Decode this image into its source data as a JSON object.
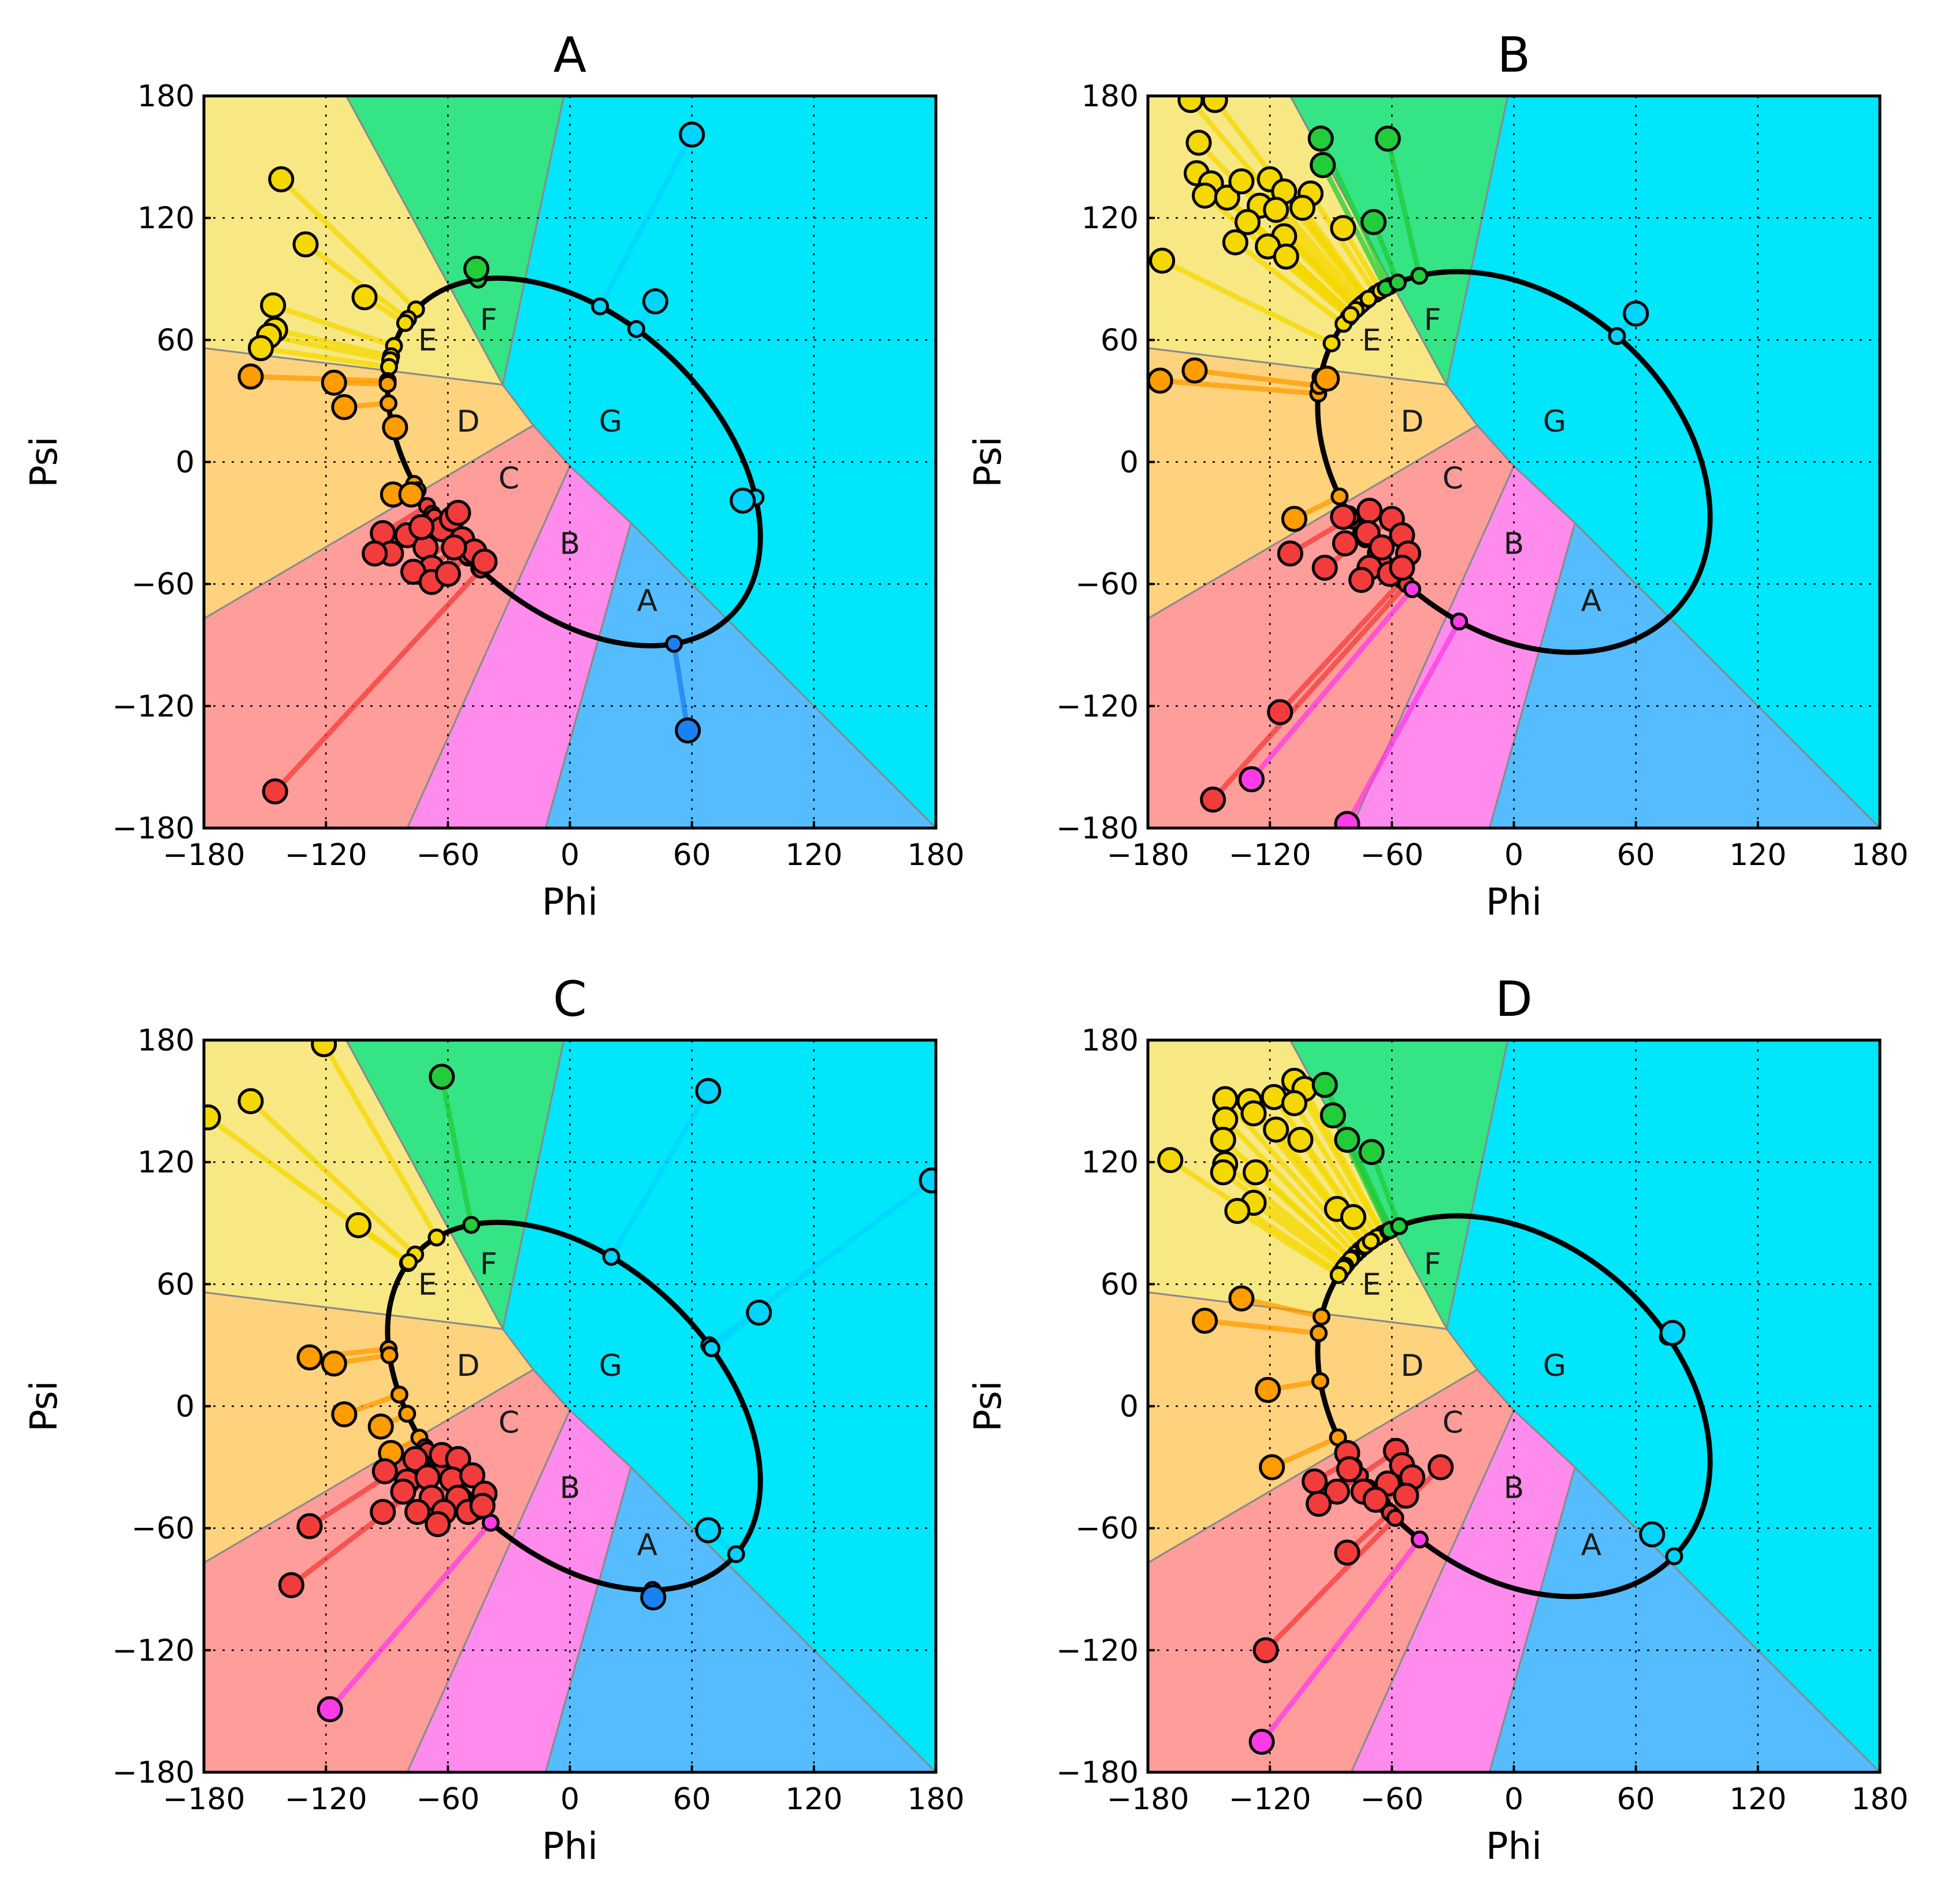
{
  "chart_data": [
    {
      "type": "scatter",
      "title": "A",
      "xlabel": "Phi",
      "ylabel": "Psi",
      "xlim": [
        -180,
        180
      ],
      "ylim": [
        -180,
        180
      ],
      "xticks": [
        "−180",
        "−120",
        "−60",
        "0",
        "60",
        "120",
        "180"
      ],
      "yticks": [
        "180",
        "120",
        "60",
        "0",
        "−60",
        "−120",
        "−180"
      ],
      "grid": true,
      "region_labels": [
        "A",
        "B",
        "C",
        "D",
        "E",
        "F",
        "G"
      ],
      "ellipse": {
        "center": [
          2,
          0
        ],
        "semi_axes": [
          108,
          70
        ],
        "angle_deg": -44
      },
      "points": [
        {
          "phi": -142,
          "psi": 139,
          "c": "#f5d800"
        },
        {
          "phi": -130,
          "psi": 107,
          "c": "#f5d800"
        },
        {
          "phi": -146,
          "psi": 77,
          "c": "#f5d800"
        },
        {
          "phi": -145,
          "psi": 65,
          "c": "#f5d800"
        },
        {
          "phi": -148,
          "psi": 62,
          "c": "#f5d800"
        },
        {
          "phi": -152,
          "psi": 56,
          "c": "#f5d800"
        },
        {
          "phi": -101,
          "psi": 81,
          "c": "#f5d800"
        },
        {
          "phi": -157,
          "psi": 42,
          "c": "#ff9c00"
        },
        {
          "phi": -116,
          "psi": 39,
          "c": "#ff9c00"
        },
        {
          "phi": -111,
          "psi": 27,
          "c": "#ff9c00"
        },
        {
          "phi": -86,
          "psi": 17,
          "c": "#ff9c00"
        },
        {
          "phi": -87,
          "psi": -16,
          "c": "#ff9c00"
        },
        {
          "phi": -78,
          "psi": -16,
          "c": "#ff9c00"
        },
        {
          "phi": -92,
          "psi": -35,
          "c": "#f23c3c"
        },
        {
          "phi": -88,
          "psi": -45,
          "c": "#f23c3c"
        },
        {
          "phi": -80,
          "psi": -36,
          "c": "#f23c3c"
        },
        {
          "phi": -71,
          "psi": -42,
          "c": "#f23c3c"
        },
        {
          "phi": -63,
          "psi": -33,
          "c": "#f23c3c"
        },
        {
          "phi": -58,
          "psi": -28,
          "c": "#f23c3c"
        },
        {
          "phi": -55,
          "psi": -25,
          "c": "#f23c3c"
        },
        {
          "phi": -53,
          "psi": -38,
          "c": "#f23c3c"
        },
        {
          "phi": -47,
          "psi": -44,
          "c": "#f23c3c"
        },
        {
          "phi": -42,
          "psi": -49,
          "c": "#f23c3c"
        },
        {
          "phi": -57,
          "psi": -42,
          "c": "#f23c3c"
        },
        {
          "phi": -68,
          "psi": -52,
          "c": "#f23c3c"
        },
        {
          "phi": -77,
          "psi": -54,
          "c": "#f23c3c"
        },
        {
          "phi": -96,
          "psi": -45,
          "c": "#f23c3c"
        },
        {
          "phi": -68,
          "psi": -59,
          "c": "#f23c3c"
        },
        {
          "phi": -60,
          "psi": -55,
          "c": "#f23c3c"
        },
        {
          "phi": -73,
          "psi": -32,
          "c": "#f23c3c"
        },
        {
          "phi": -145,
          "psi": -162,
          "c": "#f23c3c"
        },
        {
          "phi": -46,
          "psi": 95,
          "c": "#22cc3a"
        },
        {
          "phi": 60,
          "psi": 161,
          "c": "#00d4ff"
        },
        {
          "phi": 42,
          "psi": 79,
          "c": "#00d4ff"
        },
        {
          "phi": 85,
          "psi": -19,
          "c": "#00d4ff"
        },
        {
          "phi": 58,
          "psi": -132,
          "c": "#1a82f0"
        }
      ]
    },
    {
      "type": "scatter",
      "title": "B",
      "xlabel": "Phi",
      "ylabel": "Psi",
      "xlim": [
        -180,
        180
      ],
      "ylim": [
        -180,
        180
      ],
      "xticks": [
        "−180",
        "−120",
        "−60",
        "0",
        "60",
        "120",
        "180"
      ],
      "yticks": [
        "180",
        "120",
        "60",
        "0",
        "−60",
        "−120",
        "−180"
      ],
      "grid": true,
      "region_labels": [
        "A",
        "B",
        "C",
        "D",
        "E",
        "F",
        "G"
      ],
      "ellipse": {
        "center": [
          0,
          0
        ],
        "semi_axes": [
          108,
          80
        ],
        "angle_deg": -42
      },
      "points": [
        {
          "phi": -159,
          "psi": 178,
          "c": "#f5d800"
        },
        {
          "phi": -147,
          "psi": 178,
          "c": "#f5d800"
        },
        {
          "phi": -155,
          "psi": 157,
          "c": "#f5d800"
        },
        {
          "phi": -156,
          "psi": 142,
          "c": "#f5d800"
        },
        {
          "phi": -149,
          "psi": 137,
          "c": "#f5d800"
        },
        {
          "phi": -152,
          "psi": 131,
          "c": "#f5d800"
        },
        {
          "phi": -141,
          "psi": 130,
          "c": "#f5d800"
        },
        {
          "phi": -134,
          "psi": 138,
          "c": "#f5d800"
        },
        {
          "phi": -120,
          "psi": 139,
          "c": "#f5d800"
        },
        {
          "phi": -113,
          "psi": 133,
          "c": "#f5d800"
        },
        {
          "phi": -100,
          "psi": 132,
          "c": "#f5d800"
        },
        {
          "phi": -125,
          "psi": 126,
          "c": "#f5d800"
        },
        {
          "phi": -131,
          "psi": 118,
          "c": "#f5d800"
        },
        {
          "phi": -117,
          "psi": 124,
          "c": "#f5d800"
        },
        {
          "phi": -104,
          "psi": 125,
          "c": "#f5d800"
        },
        {
          "phi": -113,
          "psi": 111,
          "c": "#f5d800"
        },
        {
          "phi": -121,
          "psi": 106,
          "c": "#f5d800"
        },
        {
          "phi": -137,
          "psi": 108,
          "c": "#f5d800"
        },
        {
          "phi": -112,
          "psi": 101,
          "c": "#f5d800"
        },
        {
          "phi": -173,
          "psi": 99,
          "c": "#f5d800"
        },
        {
          "phi": -84,
          "psi": 115,
          "c": "#f5d800"
        },
        {
          "phi": -174,
          "psi": 40,
          "c": "#ff9c00"
        },
        {
          "phi": -157,
          "psi": 45,
          "c": "#ff9c00"
        },
        {
          "phi": -92,
          "psi": 41,
          "c": "#ff9c00"
        },
        {
          "phi": -108,
          "psi": -28,
          "c": "#ff9c00"
        },
        {
          "phi": -71,
          "psi": -24,
          "c": "#f23c3c"
        },
        {
          "phi": -84,
          "psi": -27,
          "c": "#f23c3c"
        },
        {
          "phi": -60,
          "psi": -28,
          "c": "#f23c3c"
        },
        {
          "phi": -55,
          "psi": -36,
          "c": "#f23c3c"
        },
        {
          "phi": -83,
          "psi": -40,
          "c": "#f23c3c"
        },
        {
          "phi": -72,
          "psi": -35,
          "c": "#f23c3c"
        },
        {
          "phi": -65,
          "psi": -42,
          "c": "#f23c3c"
        },
        {
          "phi": -52,
          "psi": -45,
          "c": "#f23c3c"
        },
        {
          "phi": -71,
          "psi": -52,
          "c": "#f23c3c"
        },
        {
          "phi": -61,
          "psi": -55,
          "c": "#f23c3c"
        },
        {
          "phi": -75,
          "psi": -58,
          "c": "#f23c3c"
        },
        {
          "phi": -93,
          "psi": -52,
          "c": "#f23c3c"
        },
        {
          "phi": -55,
          "psi": -52,
          "c": "#f23c3c"
        },
        {
          "phi": -110,
          "psi": -45,
          "c": "#f23c3c"
        },
        {
          "phi": -115,
          "psi": -123,
          "c": "#f23c3c"
        },
        {
          "phi": -148,
          "psi": -166,
          "c": "#f23c3c"
        },
        {
          "phi": -129,
          "psi": -156,
          "c": "#ff3be6"
        },
        {
          "phi": -82,
          "psi": -178,
          "c": "#ff3be6"
        },
        {
          "phi": -95,
          "psi": 159,
          "c": "#22cc3a"
        },
        {
          "phi": -94,
          "psi": 146,
          "c": "#22cc3a"
        },
        {
          "phi": -62,
          "psi": 159,
          "c": "#22cc3a"
        },
        {
          "phi": -69,
          "psi": 118,
          "c": "#22cc3a"
        },
        {
          "phi": 60,
          "psi": 73,
          "c": "#00d4ff"
        }
      ]
    },
    {
      "type": "scatter",
      "title": "C",
      "xlabel": "Phi",
      "ylabel": "Psi",
      "xlim": [
        -180,
        180
      ],
      "ylim": [
        -180,
        180
      ],
      "xticks": [
        "−180",
        "−120",
        "−60",
        "0",
        "60",
        "120",
        "180"
      ],
      "yticks": [
        "180",
        "120",
        "60",
        "0",
        "−60",
        "−120",
        "−180"
      ],
      "grid": true,
      "region_labels": [
        "A",
        "B",
        "C",
        "D",
        "E",
        "F",
        "G"
      ],
      "ellipse": {
        "center": [
          2,
          0
        ],
        "semi_axes": [
          108,
          70
        ],
        "angle_deg": -44
      },
      "points": [
        {
          "phi": -121,
          "psi": 178,
          "c": "#f5d800"
        },
        {
          "phi": -157,
          "psi": 150,
          "c": "#f5d800"
        },
        {
          "phi": -178,
          "psi": 142,
          "c": "#f5d800"
        },
        {
          "phi": -104,
          "psi": 89,
          "c": "#f5d800"
        },
        {
          "phi": -128,
          "psi": 24,
          "c": "#ff9c00"
        },
        {
          "phi": -116,
          "psi": 21,
          "c": "#ff9c00"
        },
        {
          "phi": -111,
          "psi": -4,
          "c": "#ff9c00"
        },
        {
          "phi": -93,
          "psi": -10,
          "c": "#ff9c00"
        },
        {
          "phi": -88,
          "psi": -23,
          "c": "#ff9c00"
        },
        {
          "phi": -91,
          "psi": -32,
          "c": "#f23c3c"
        },
        {
          "phi": -76,
          "psi": -26,
          "c": "#f23c3c"
        },
        {
          "phi": -63,
          "psi": -24,
          "c": "#f23c3c"
        },
        {
          "phi": -55,
          "psi": -26,
          "c": "#f23c3c"
        },
        {
          "phi": -80,
          "psi": -37,
          "c": "#f23c3c"
        },
        {
          "phi": -70,
          "psi": -35,
          "c": "#f23c3c"
        },
        {
          "phi": -58,
          "psi": -36,
          "c": "#f23c3c"
        },
        {
          "phi": -48,
          "psi": -34,
          "c": "#f23c3c"
        },
        {
          "phi": -42,
          "psi": -43,
          "c": "#f23c3c"
        },
        {
          "phi": -55,
          "psi": -45,
          "c": "#f23c3c"
        },
        {
          "phi": -68,
          "psi": -45,
          "c": "#f23c3c"
        },
        {
          "phi": -82,
          "psi": -42,
          "c": "#f23c3c"
        },
        {
          "phi": -75,
          "psi": -52,
          "c": "#f23c3c"
        },
        {
          "phi": -62,
          "psi": -52,
          "c": "#f23c3c"
        },
        {
          "phi": -50,
          "psi": -52,
          "c": "#f23c3c"
        },
        {
          "phi": -65,
          "psi": -58,
          "c": "#f23c3c"
        },
        {
          "phi": -43,
          "psi": -49,
          "c": "#f23c3c"
        },
        {
          "phi": -92,
          "psi": -52,
          "c": "#f23c3c"
        },
        {
          "phi": -128,
          "psi": -59,
          "c": "#f23c3c"
        },
        {
          "phi": -137,
          "psi": -88,
          "c": "#f23c3c"
        },
        {
          "phi": -118,
          "psi": -149,
          "c": "#ff3be6"
        },
        {
          "phi": -63,
          "psi": 162,
          "c": "#22cc3a"
        },
        {
          "phi": 68,
          "psi": 155,
          "c": "#00d4ff"
        },
        {
          "phi": 178,
          "psi": 111,
          "c": "#00d4ff"
        },
        {
          "phi": 93,
          "psi": 46,
          "c": "#00d4ff"
        },
        {
          "phi": 68,
          "psi": -61,
          "c": "#00d4ff"
        },
        {
          "phi": 41,
          "psi": -94,
          "c": "#1a82f0"
        }
      ]
    },
    {
      "type": "scatter",
      "title": "D",
      "xlabel": "Phi",
      "ylabel": "Psi",
      "xlim": [
        -180,
        180
      ],
      "ylim": [
        -180,
        180
      ],
      "xticks": [
        "−180",
        "−120",
        "−60",
        "0",
        "60",
        "120",
        "180"
      ],
      "yticks": [
        "180",
        "120",
        "60",
        "0",
        "−60",
        "−120",
        "−180"
      ],
      "grid": true,
      "region_labels": [
        "A",
        "B",
        "C",
        "D",
        "E",
        "F",
        "G"
      ],
      "ellipse": {
        "center": [
          0,
          0
        ],
        "semi_axes": [
          108,
          80
        ],
        "angle_deg": -42
      },
      "points": [
        {
          "phi": -108,
          "psi": 160,
          "c": "#f5d800"
        },
        {
          "phi": -103,
          "psi": 156,
          "c": "#f5d800"
        },
        {
          "phi": -142,
          "psi": 151,
          "c": "#f5d800"
        },
        {
          "phi": -130,
          "psi": 150,
          "c": "#f5d800"
        },
        {
          "phi": -118,
          "psi": 152,
          "c": "#f5d800"
        },
        {
          "phi": -108,
          "psi": 149,
          "c": "#f5d800"
        },
        {
          "phi": -142,
          "psi": 141,
          "c": "#f5d800"
        },
        {
          "phi": -128,
          "psi": 144,
          "c": "#f5d800"
        },
        {
          "phi": -143,
          "psi": 131,
          "c": "#f5d800"
        },
        {
          "phi": -117,
          "psi": 136,
          "c": "#f5d800"
        },
        {
          "phi": -105,
          "psi": 131,
          "c": "#f5d800"
        },
        {
          "phi": -142,
          "psi": 119,
          "c": "#f5d800"
        },
        {
          "phi": -127,
          "psi": 115,
          "c": "#f5d800"
        },
        {
          "phi": -143,
          "psi": 115,
          "c": "#f5d800"
        },
        {
          "phi": -169,
          "psi": 121,
          "c": "#f5d800"
        },
        {
          "phi": -128,
          "psi": 100,
          "c": "#f5d800"
        },
        {
          "phi": -136,
          "psi": 96,
          "c": "#f5d800"
        },
        {
          "phi": -87,
          "psi": 97,
          "c": "#f5d800"
        },
        {
          "phi": -79,
          "psi": 93,
          "c": "#f5d800"
        },
        {
          "phi": -134,
          "psi": 53,
          "c": "#ff9c00"
        },
        {
          "phi": -152,
          "psi": 42,
          "c": "#ff9c00"
        },
        {
          "phi": -121,
          "psi": 8,
          "c": "#ff9c00"
        },
        {
          "phi": -119,
          "psi": -30,
          "c": "#ff9c00"
        },
        {
          "phi": -82,
          "psi": -23,
          "c": "#f23c3c"
        },
        {
          "phi": -58,
          "psi": -22,
          "c": "#f23c3c"
        },
        {
          "phi": -98,
          "psi": -37,
          "c": "#f23c3c"
        },
        {
          "phi": -81,
          "psi": -31,
          "c": "#f23c3c"
        },
        {
          "phi": -55,
          "psi": -29,
          "c": "#f23c3c"
        },
        {
          "phi": -62,
          "psi": -38,
          "c": "#f23c3c"
        },
        {
          "phi": -74,
          "psi": -42,
          "c": "#f23c3c"
        },
        {
          "phi": -87,
          "psi": -42,
          "c": "#f23c3c"
        },
        {
          "phi": -50,
          "psi": -35,
          "c": "#f23c3c"
        },
        {
          "phi": -36,
          "psi": -30,
          "c": "#f23c3c"
        },
        {
          "phi": -96,
          "psi": -48,
          "c": "#f23c3c"
        },
        {
          "phi": -68,
          "psi": -46,
          "c": "#f23c3c"
        },
        {
          "phi": -53,
          "psi": -44,
          "c": "#f23c3c"
        },
        {
          "phi": -82,
          "psi": -72,
          "c": "#f23c3c"
        },
        {
          "phi": -122,
          "psi": -120,
          "c": "#f23c3c"
        },
        {
          "phi": -124,
          "psi": -165,
          "c": "#ff3be6"
        },
        {
          "phi": -93,
          "psi": 158,
          "c": "#22cc3a"
        },
        {
          "phi": -89,
          "psi": 143,
          "c": "#22cc3a"
        },
        {
          "phi": -82,
          "psi": 131,
          "c": "#22cc3a"
        },
        {
          "phi": -70,
          "psi": 125,
          "c": "#22cc3a"
        },
        {
          "phi": 78,
          "psi": 36,
          "c": "#00d4ff"
        },
        {
          "phi": 68,
          "psi": -63,
          "c": "#00d4ff"
        }
      ]
    }
  ],
  "colors": {
    "region_A": "#55bdff",
    "region_B": "#ff8cec",
    "region_C": "#ff9d9a",
    "region_D": "#ffd27e",
    "region_E": "#f7e884",
    "region_F": "#35e485",
    "region_G": "#00e6fb"
  }
}
